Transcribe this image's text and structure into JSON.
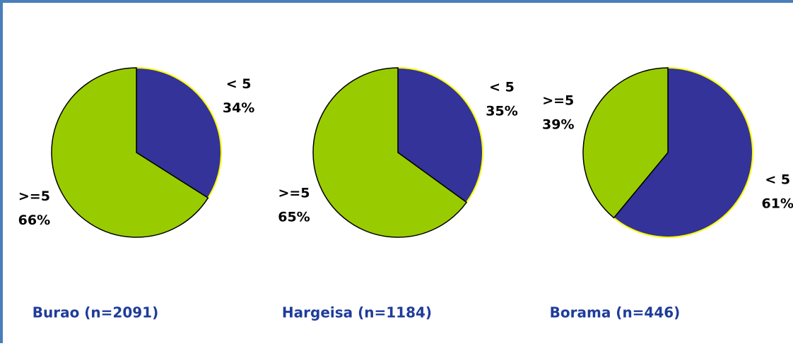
{
  "chart_data": [
    {
      "type": "pie",
      "title": "Burao (n=2091)",
      "categories": [
        "< 5",
        ">=5"
      ],
      "values": [
        34,
        66
      ],
      "value_labels": [
        "34%",
        "66%"
      ],
      "colors": [
        "#333399",
        "#99cc00"
      ]
    },
    {
      "type": "pie",
      "title": "Hargeisa (n=1184)",
      "categories": [
        "< 5",
        ">=5"
      ],
      "values": [
        35,
        65
      ],
      "value_labels": [
        "35%",
        "65%"
      ],
      "colors": [
        "#333399",
        "#99cc00"
      ]
    },
    {
      "type": "pie",
      "title": "Borama (n=446)",
      "categories": [
        "< 5",
        ">=5"
      ],
      "values": [
        61,
        39
      ],
      "value_labels": [
        "61%",
        "39%"
      ],
      "colors": [
        "#333399",
        "#99cc00"
      ]
    }
  ]
}
